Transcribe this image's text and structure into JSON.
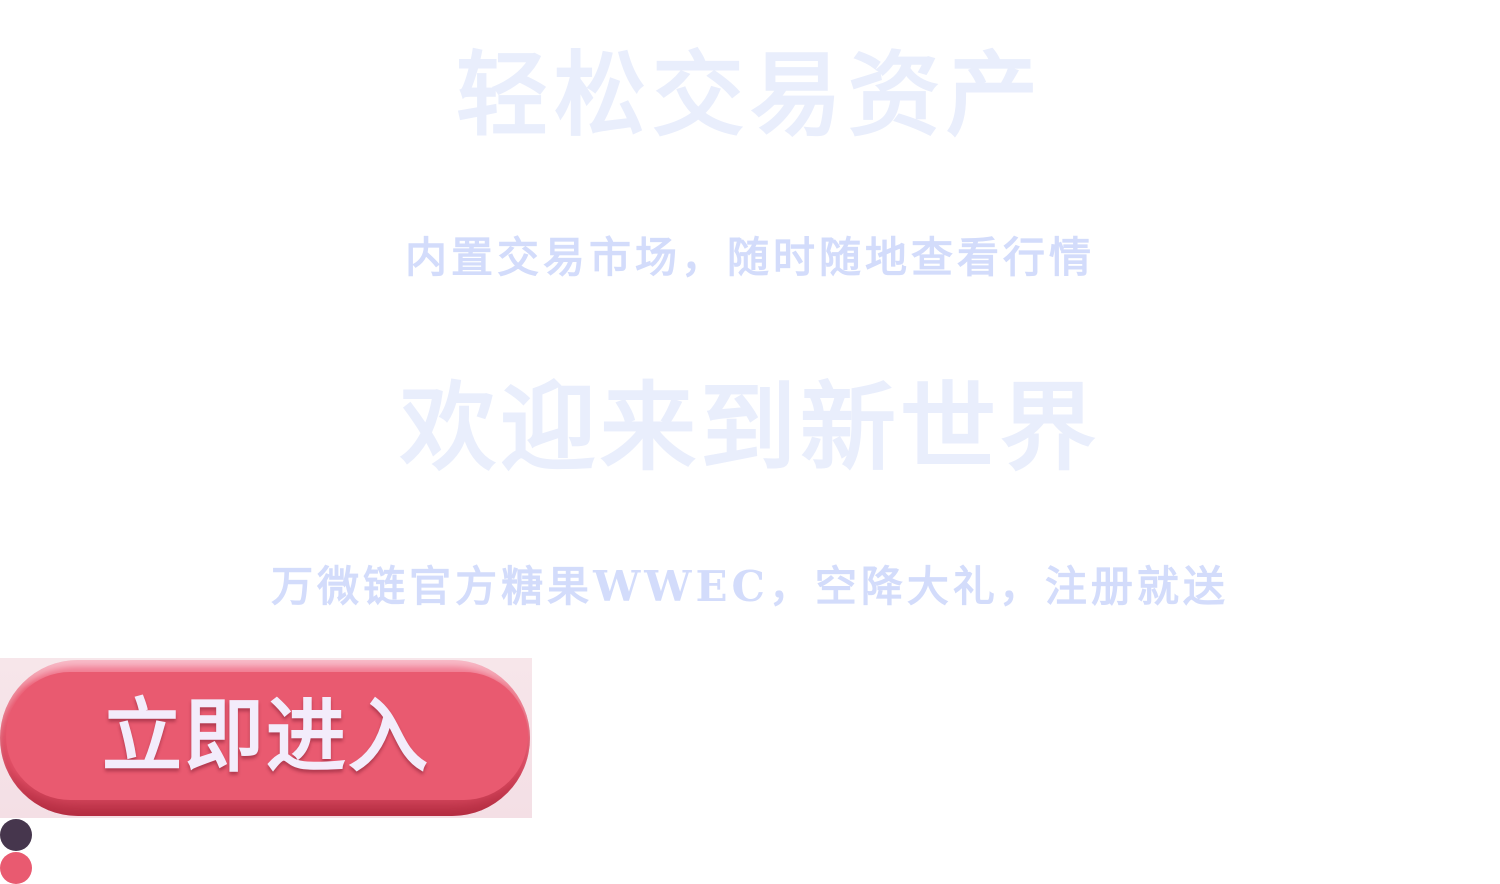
{
  "slides": [
    {
      "title": "轻松交易资产",
      "subtitle": "内置交易市场，随时随地查看行情"
    },
    {
      "title": "欢迎来到新世界",
      "subtitle": "万微链官方糖果WWEC，空降大礼，注册就送"
    }
  ],
  "enter_button": {
    "label": "立即进入",
    "color": "#e95a70"
  },
  "pager": {
    "dots": [
      {
        "state": "active",
        "color": "#46364d"
      },
      {
        "state": "inactive",
        "color": "#e95a70"
      }
    ]
  },
  "colors": {
    "title_text": "#e9eefc",
    "subtitle_text": "#d3dcfb",
    "button_text": "#f3ecfb"
  }
}
